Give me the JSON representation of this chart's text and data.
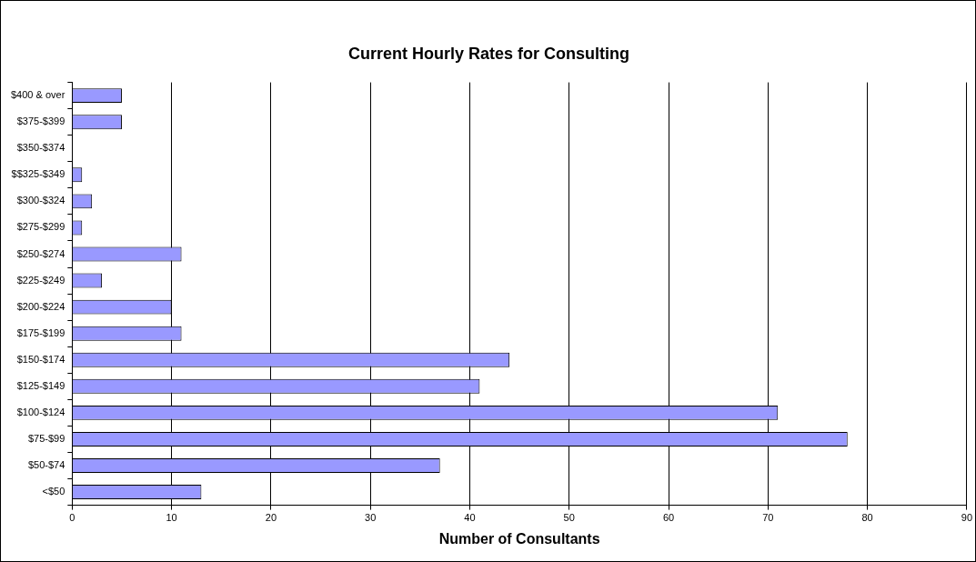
{
  "chart_data": {
    "type": "bar",
    "orientation": "horizontal",
    "title": "Current Hourly Rates for Consulting",
    "xlabel": "Number of Consultants",
    "categories": [
      "$400 & over",
      "$375-$399",
      "$350-$374",
      "$$325-$349",
      "$300-$324",
      "$275-$299",
      "$250-$274",
      "$225-$249",
      "$200-$224",
      "$175-$199",
      "$150-$174",
      "$125-$149",
      "$100-$124",
      "$75-$99",
      "$50-$74",
      "<$50"
    ],
    "values": [
      5,
      5,
      0,
      1,
      2,
      1,
      11,
      3,
      10,
      11,
      44,
      41,
      71,
      78,
      37,
      13
    ],
    "color": "#9999ff",
    "xlim": [
      0,
      90
    ],
    "xticks": [
      0,
      10,
      20,
      30,
      40,
      50,
      60,
      70,
      80,
      90
    ],
    "grid": "x",
    "legend": false
  }
}
